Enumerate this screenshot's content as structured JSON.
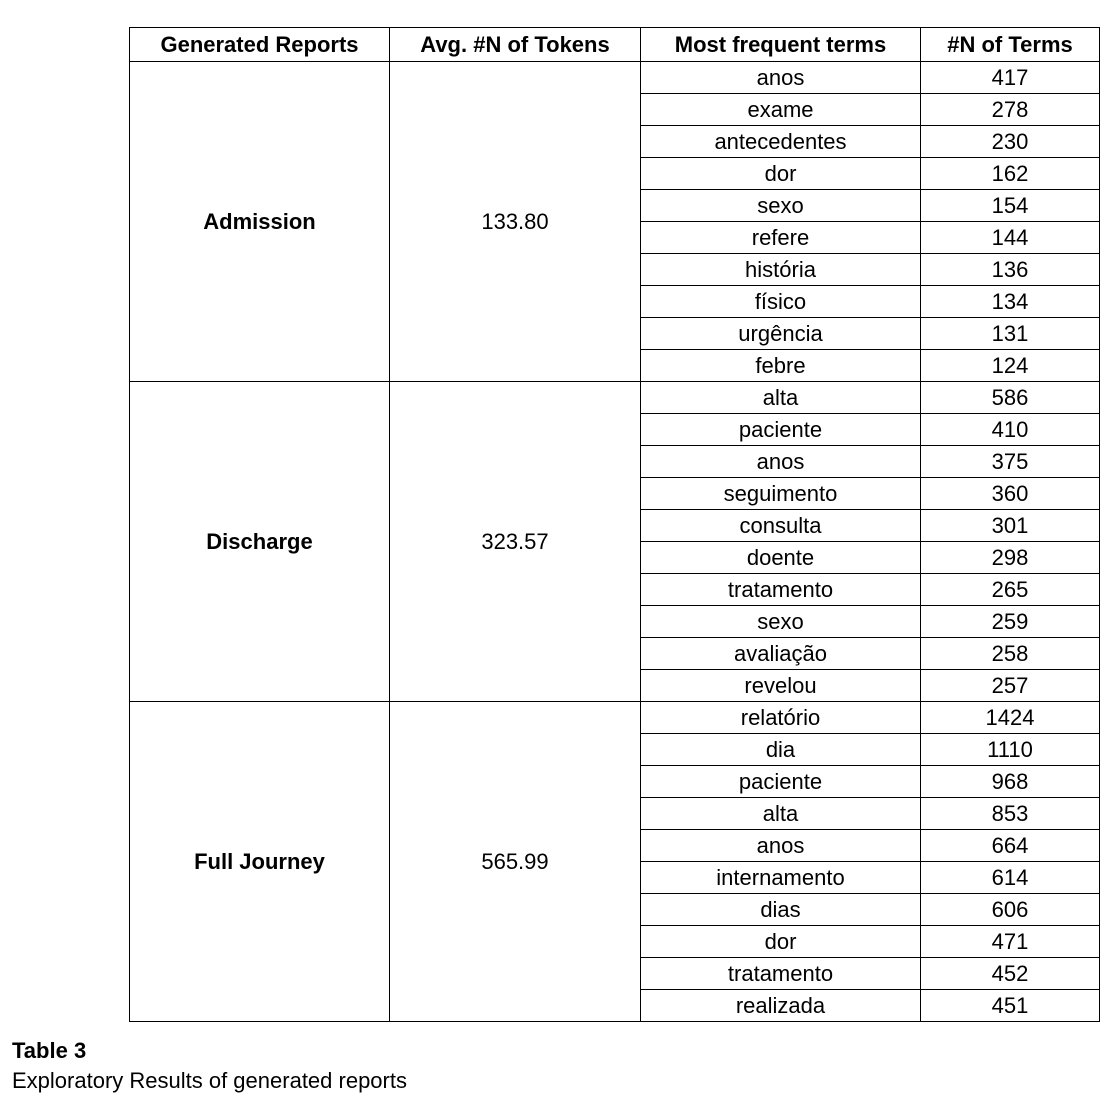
{
  "table": {
    "headers": [
      "Generated Reports",
      "Avg. #N of Tokens",
      "Most frequent terms",
      "#N of Terms"
    ],
    "groups": [
      {
        "name": "Admission",
        "avg_tokens": "133.80",
        "terms": [
          {
            "term": "anos",
            "count": "417"
          },
          {
            "term": "exame",
            "count": "278"
          },
          {
            "term": "antecedentes",
            "count": "230"
          },
          {
            "term": "dor",
            "count": "162"
          },
          {
            "term": "sexo",
            "count": "154"
          },
          {
            "term": "refere",
            "count": "144"
          },
          {
            "term": "história",
            "count": "136"
          },
          {
            "term": "físico",
            "count": "134"
          },
          {
            "term": "urgência",
            "count": "131"
          },
          {
            "term": "febre",
            "count": "124"
          }
        ]
      },
      {
        "name": "Discharge",
        "avg_tokens": "323.57",
        "terms": [
          {
            "term": "alta",
            "count": "586"
          },
          {
            "term": "paciente",
            "count": "410"
          },
          {
            "term": "anos",
            "count": "375"
          },
          {
            "term": "seguimento",
            "count": "360"
          },
          {
            "term": "consulta",
            "count": "301"
          },
          {
            "term": "doente",
            "count": "298"
          },
          {
            "term": "tratamento",
            "count": "265"
          },
          {
            "term": "sexo",
            "count": "259"
          },
          {
            "term": "avaliação",
            "count": "258"
          },
          {
            "term": "revelou",
            "count": "257"
          }
        ]
      },
      {
        "name": "Full Journey",
        "avg_tokens": "565.99",
        "terms": [
          {
            "term": "relatório",
            "count": "1424"
          },
          {
            "term": "dia",
            "count": "1110"
          },
          {
            "term": "paciente",
            "count": "968"
          },
          {
            "term": "alta",
            "count": "853"
          },
          {
            "term": "anos",
            "count": "664"
          },
          {
            "term": "internamento",
            "count": "614"
          },
          {
            "term": "dias",
            "count": "606"
          },
          {
            "term": "dor",
            "count": "471"
          },
          {
            "term": "tratamento",
            "count": "452"
          },
          {
            "term": "realizada",
            "count": "451"
          }
        ]
      }
    ]
  },
  "caption": {
    "label": "Table 3",
    "text": "Exploratory Results of generated reports"
  }
}
